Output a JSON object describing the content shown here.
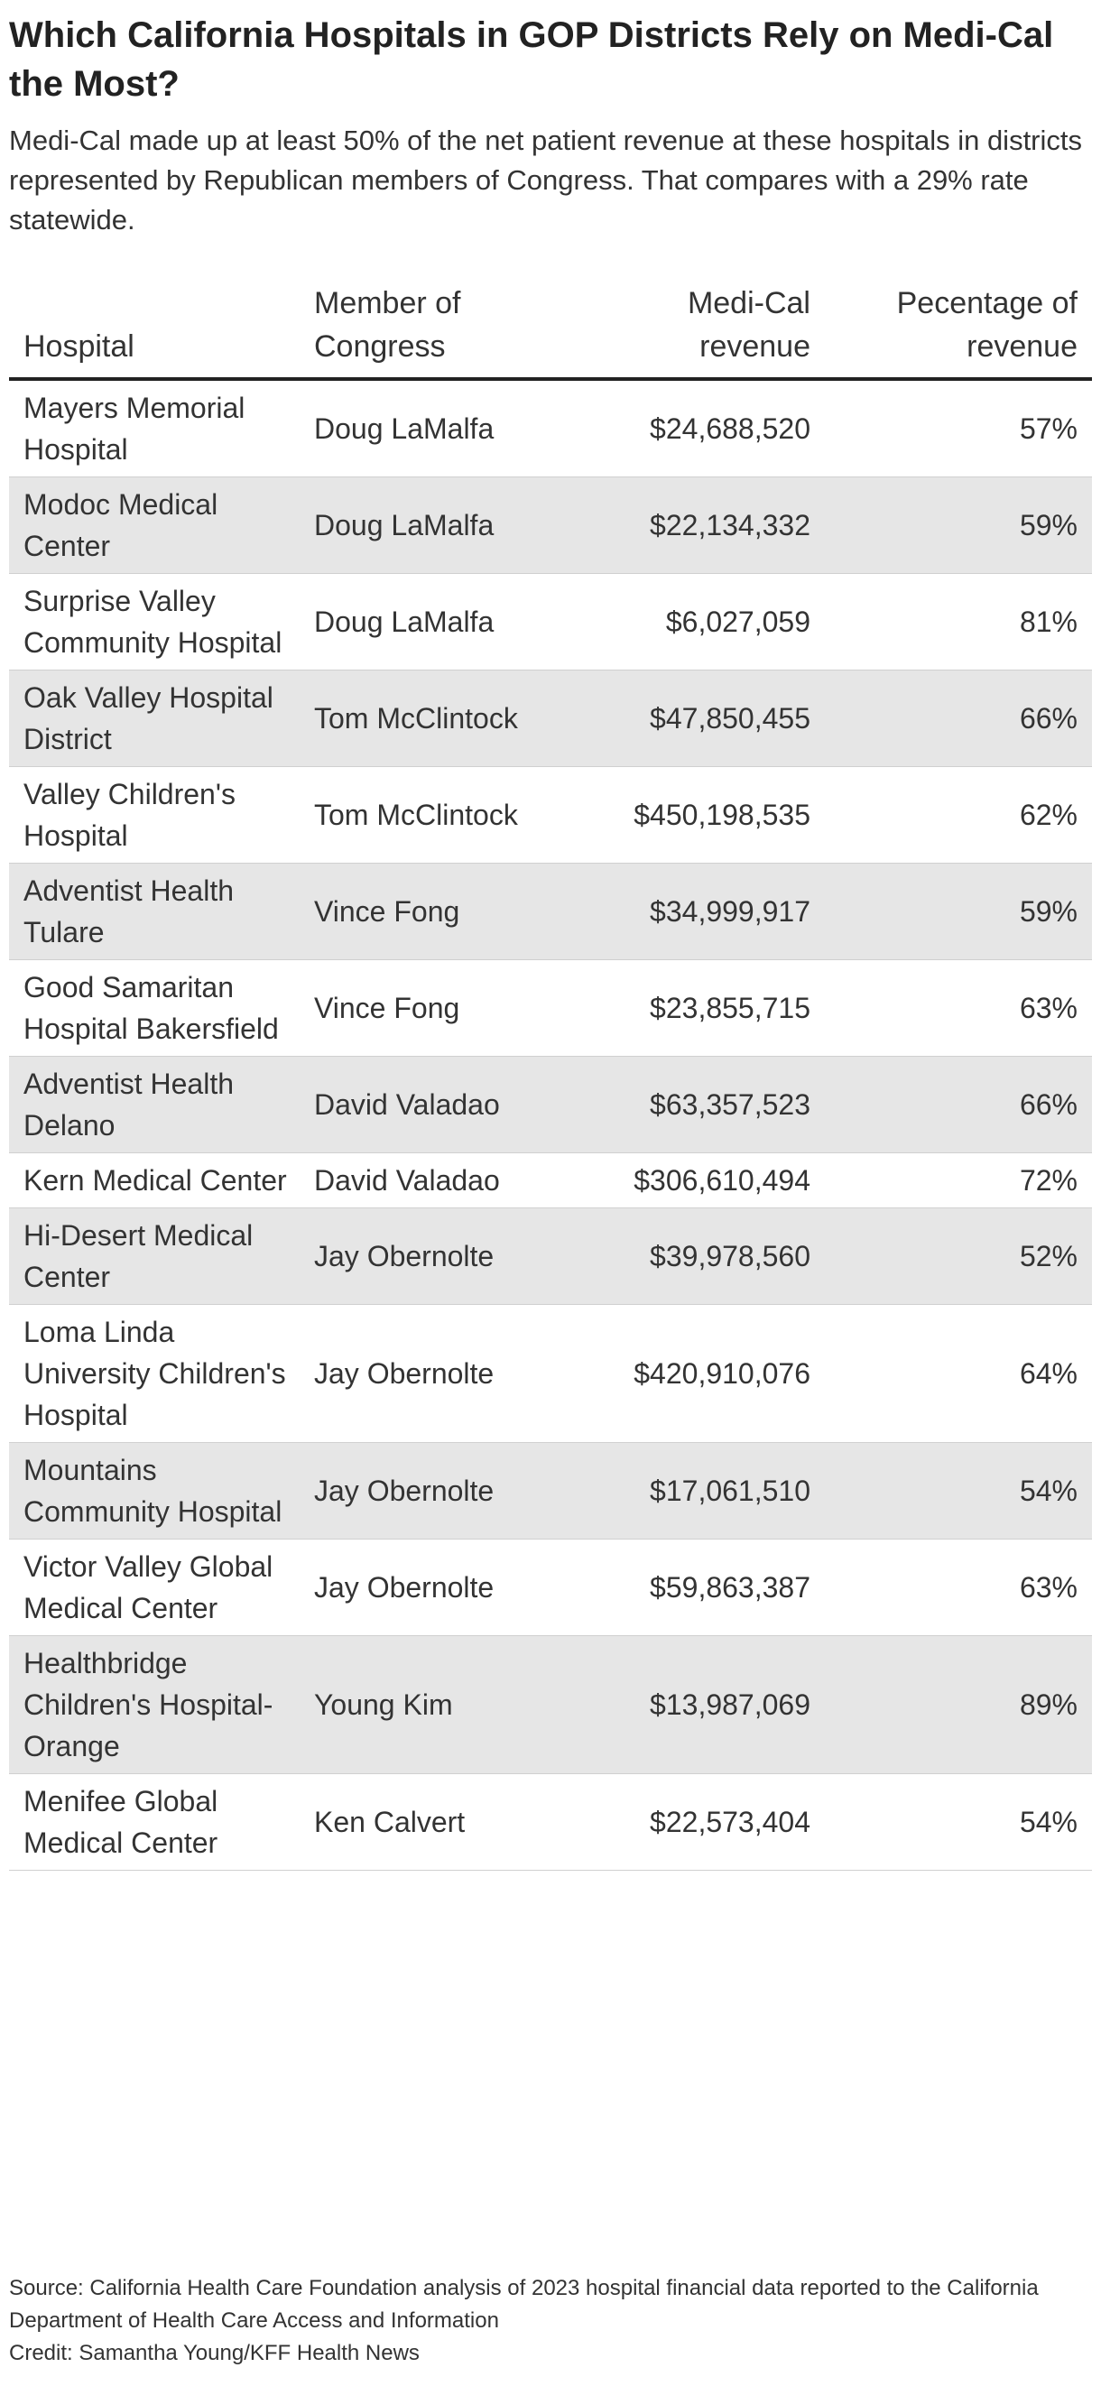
{
  "title": "Which California Hospitals in GOP Districts Rely on Medi-Cal the Most?",
  "subtitle": "Medi-Cal made up at least 50% of the net patient revenue at these hospitals in districts represented by Republican members of Congress. That compares with a 29% rate statewide.",
  "chart_data": {
    "type": "table",
    "columns": [
      "Hospital",
      "Member of Congress",
      "Medi-Cal revenue",
      "Pecentage of revenue"
    ],
    "rows": [
      [
        "Mayers Memorial Hospital",
        "Doug LaMalfa",
        "$24,688,520",
        "57%"
      ],
      [
        "Modoc Medical Center",
        "Doug LaMalfa",
        "$22,134,332",
        "59%"
      ],
      [
        "Surprise Valley Community Hospital",
        "Doug LaMalfa",
        "$6,027,059",
        "81%"
      ],
      [
        "Oak Valley Hospital District",
        "Tom McClintock",
        "$47,850,455",
        "66%"
      ],
      [
        "Valley Children's Hospital",
        "Tom McClintock",
        "$450,198,535",
        "62%"
      ],
      [
        "Adventist Health Tulare",
        "Vince Fong",
        "$34,999,917",
        "59%"
      ],
      [
        "Good Samaritan Hospital Bakersfield",
        "Vince Fong",
        "$23,855,715",
        "63%"
      ],
      [
        "Adventist Health Delano",
        "David Valadao",
        "$63,357,523",
        "66%"
      ],
      [
        "Kern Medical Center",
        "David Valadao",
        "$306,610,494",
        "72%"
      ],
      [
        "Hi-Desert Medical Center",
        "Jay Obernolte",
        "$39,978,560",
        "52%"
      ],
      [
        "Loma Linda University Children's Hospital",
        "Jay Obernolte",
        "$420,910,076",
        "64%"
      ],
      [
        "Mountains Community Hospital",
        "Jay Obernolte",
        "$17,061,510",
        "54%"
      ],
      [
        "Victor Valley Global Medical Center",
        "Jay Obernolte",
        "$59,863,387",
        "63%"
      ],
      [
        "Healthbridge Children's Hospital-Orange",
        "Young Kim",
        "$13,987,069",
        "89%"
      ],
      [
        "Menifee Global Medical Center",
        "Ken Calvert",
        "$22,573,404",
        "54%"
      ]
    ]
  },
  "source": "Source: California Health Care Foundation analysis of 2023 hospital financial data reported to the California Department of Health Care Access and Information",
  "credit": "Credit: Samantha Young/KFF Health News",
  "colors": {
    "row_shade": "#e6e6e6",
    "header_rule": "#222222",
    "text": "#333333"
  }
}
